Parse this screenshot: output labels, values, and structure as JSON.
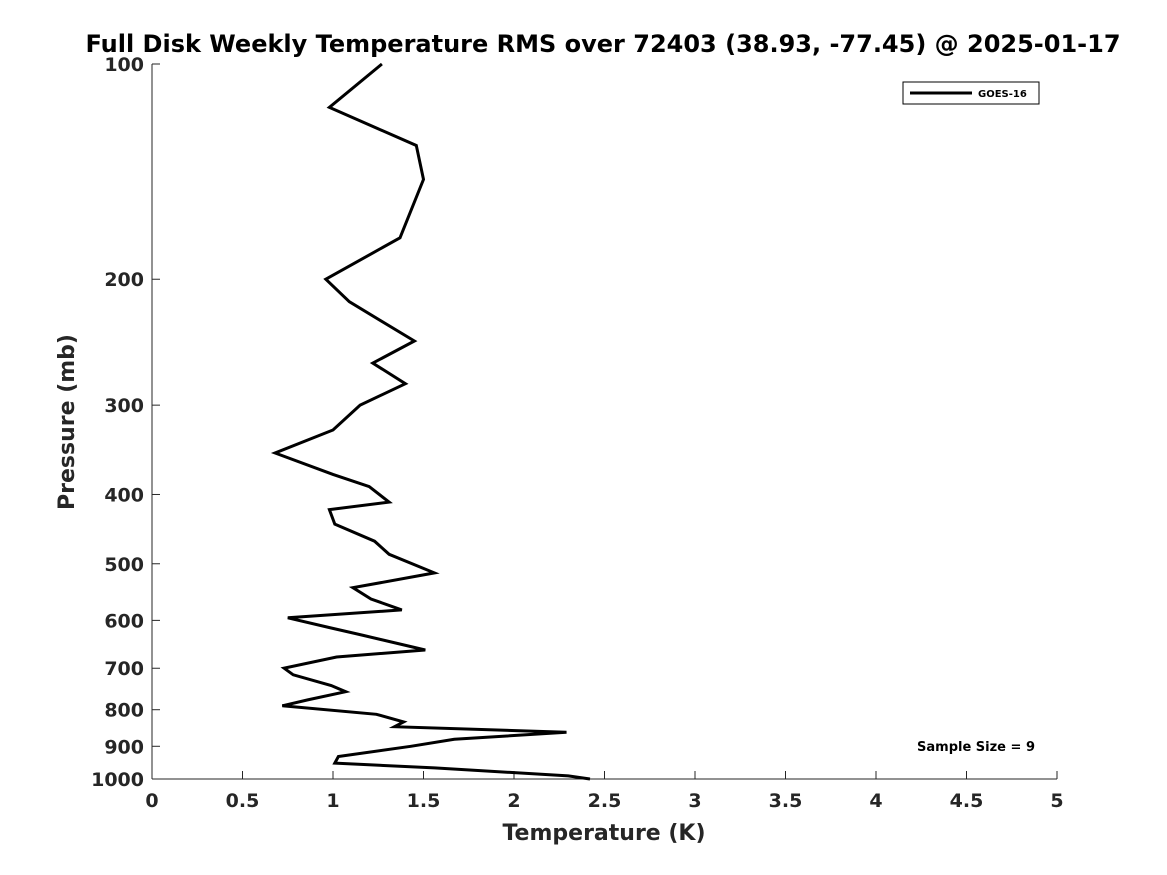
{
  "chart_data": {
    "type": "line",
    "title": "Full Disk Weekly Temperature RMS over 72403 (38.93, -77.45) @ 2025-01-17",
    "xlabel": "Temperature (K)",
    "ylabel": "Pressure (mb)",
    "xlim": [
      0,
      5
    ],
    "ylim": [
      100,
      1000
    ],
    "yscale": "log",
    "y_reversed": true,
    "grid": false,
    "legend_position": "top-right",
    "x_ticks": [
      "0",
      "0.5",
      "1",
      "1.5",
      "2",
      "2.5",
      "3",
      "3.5",
      "4",
      "4.5",
      "5"
    ],
    "y_ticks": [
      "100",
      "200",
      "300",
      "400",
      "500",
      "600",
      "700",
      "800",
      "900",
      "1000"
    ],
    "series": [
      {
        "name": "GOES-16",
        "color": "#000000",
        "x": [
          1.27,
          0.98,
          1.46,
          1.5,
          1.37,
          0.96,
          1.09,
          1.45,
          1.22,
          1.4,
          1.15,
          1.0,
          0.68,
          1.0,
          1.2,
          1.31,
          0.98,
          1.01,
          1.23,
          1.31,
          1.56,
          1.11,
          1.21,
          1.38,
          0.75,
          0.99,
          1.17,
          1.51,
          1.02,
          0.73,
          0.78,
          0.99,
          1.07,
          0.86,
          0.72,
          1.24,
          1.39,
          1.34,
          2.29,
          1.67,
          1.43,
          1.03,
          1.01,
          1.56,
          2.3,
          2.42
        ],
        "y": [
          100,
          115,
          130,
          145,
          175,
          200,
          215,
          244,
          262,
          280,
          300,
          325,
          350,
          375,
          390,
          410,
          420,
          440,
          465,
          485,
          515,
          540,
          560,
          580,
          595,
          615,
          630,
          660,
          675,
          700,
          715,
          740,
          755,
          775,
          790,
          812,
          832,
          845,
          860,
          880,
          900,
          930,
          950,
          965,
          990,
          1000
        ]
      }
    ],
    "annotations": [
      {
        "text": "Sample Size = 9",
        "position": "bottom-right"
      }
    ]
  }
}
